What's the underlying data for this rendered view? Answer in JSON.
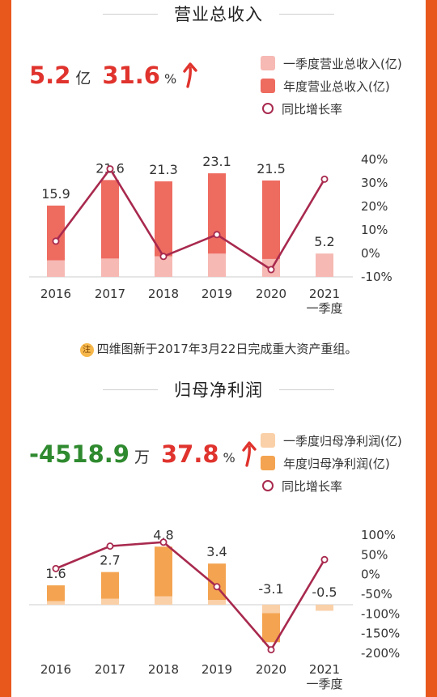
{
  "colors": {
    "frame": "#e8581c",
    "red_text": "#e0332d",
    "green_text": "#2f8a2f",
    "line": "#a8294e",
    "rev_q1": "#f6b9b3",
    "rev_year": "#ee6b60",
    "np_q1": "#fad0a8",
    "np_year": "#f4a451"
  },
  "revenue": {
    "title": "营业总收入",
    "kpi_value": "5.2",
    "kpi_unit": "亿",
    "kpi_pct": "31.6",
    "kpi_pct_unit": "%",
    "kpi_arrow": "up-arrow-icon",
    "legend": [
      "一季度营业总收入(亿)",
      "年度营业总收入(亿)",
      "同比增长率"
    ]
  },
  "net_profit": {
    "title": "归母净利润",
    "kpi_value": "-4518.9",
    "kpi_unit": "万",
    "kpi_pct": "37.8",
    "kpi_pct_unit": "%",
    "kpi_arrow": "up-arrow-icon",
    "legend": [
      "一季度归母净利润(亿)",
      "年度归母净利润(亿)",
      "同比增长率"
    ]
  },
  "note": {
    "badge": "注",
    "text": "四维图新于2017年3月22日完成重大资产重组。"
  },
  "chart_data": [
    {
      "type": "bar",
      "categories": [
        "2016",
        "2017",
        "2018",
        "2019",
        "2020",
        "2021\n一季度"
      ],
      "series": [
        {
          "name": "年度营业总收入(亿)",
          "values": [
            15.9,
            21.6,
            21.3,
            23.1,
            21.5,
            null
          ]
        },
        {
          "name": "一季度营业总收入(亿)",
          "values": [
            3.7,
            4.1,
            4.6,
            5.2,
            4.0,
            5.2
          ]
        }
      ],
      "data_labels": [
        "15.9",
        "21.6",
        "21.3",
        "23.1",
        "21.5",
        "5.2"
      ],
      "line_series": {
        "name": "同比增长率",
        "values": [
          5.2,
          36,
          -1.3,
          8,
          -6.9,
          31.6
        ]
      },
      "y2_ticks": [
        "40%",
        "30%",
        "20%",
        "10%",
        "0%",
        "-10%"
      ],
      "y2lim": [
        -10,
        40
      ],
      "ylim": [
        0,
        24.2
      ]
    },
    {
      "type": "bar",
      "categories": [
        "2016",
        "2017",
        "2018",
        "2019",
        "2020",
        "2021\n一季度"
      ],
      "series": [
        {
          "name": "年度归母净利润(亿)",
          "values": [
            1.6,
            2.7,
            4.8,
            3.4,
            -3.1,
            null
          ]
        },
        {
          "name": "一季度归母净利润(亿)",
          "values": [
            0.3,
            0.5,
            0.7,
            0.4,
            -0.7,
            -0.5
          ]
        }
      ],
      "data_labels": [
        "1.6",
        "2.7",
        "4.8",
        "3.4",
        "-3.1",
        "-0.5"
      ],
      "line_series": {
        "name": "同比增长率",
        "values": [
          15,
          72,
          82,
          -31,
          -191,
          37.8
        ]
      },
      "y2_ticks": [
        "100%",
        "50%",
        "0%",
        "-50%",
        "-100%",
        "-150%",
        "-200%"
      ],
      "y2lim": [
        -200,
        100
      ],
      "ylim": [
        -4.0,
        5.2
      ]
    }
  ]
}
